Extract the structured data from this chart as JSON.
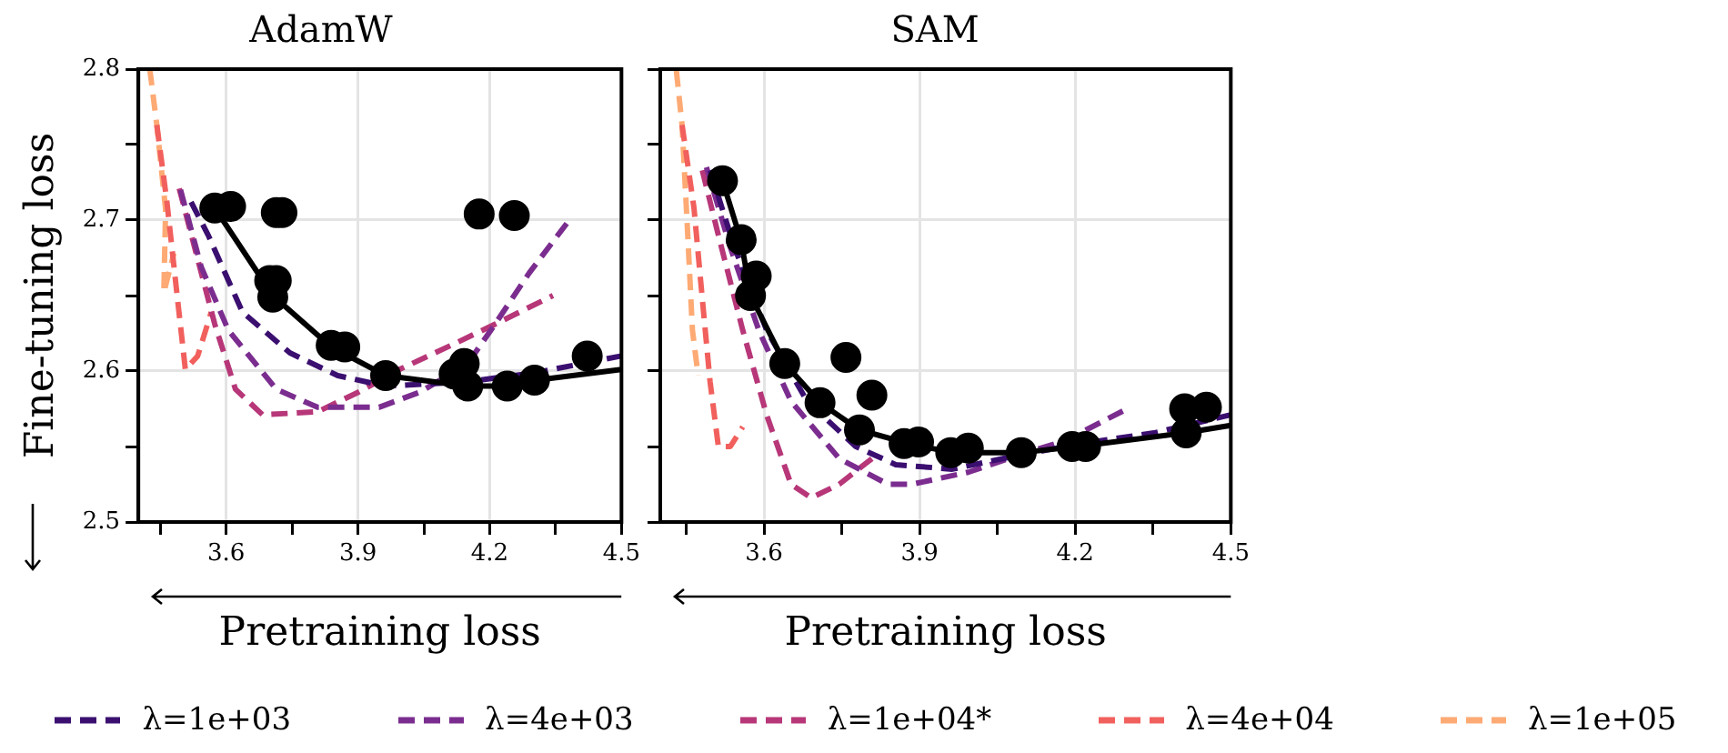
{
  "chart_data": [
    {
      "type": "line",
      "title": "AdamW",
      "xlabel": "Pretraining loss",
      "ylabel": "Fine-tuning loss",
      "xlim": [
        3.4,
        4.5
      ],
      "ylim": [
        2.5,
        2.8
      ],
      "xticks": [
        {
          "value": 3.45,
          "label": null
        },
        3.6,
        {
          "value": 3.75,
          "label": null
        },
        3.9,
        {
          "value": 4.05,
          "label": null
        },
        4.2,
        {
          "value": 4.35,
          "label": null
        },
        4.5
      ],
      "yticks": [
        2.5,
        {
          "value": 2.55,
          "label": null
        },
        2.6,
        {
          "value": 2.65,
          "label": null
        },
        2.7,
        {
          "value": 2.75,
          "label": null
        },
        2.8
      ],
      "grid": true,
      "legend": "bottom",
      "series": [
        {
          "type": "scatter",
          "color": "#000000",
          "marker": "circle",
          "x": [
            3.574,
            3.61,
            3.714,
            3.727,
            3.699,
            3.714,
            3.706,
            3.839,
            3.87,
            3.963,
            4.142,
            4.119,
            4.15,
            4.24,
            4.302,
            4.422,
            4.176,
            4.256
          ],
          "values": [
            2.708,
            2.709,
            2.705,
            2.705,
            2.66,
            2.66,
            2.649,
            2.617,
            2.616,
            2.597,
            2.605,
            2.598,
            2.59,
            2.59,
            2.594,
            2.61,
            2.704,
            2.703
          ]
        },
        {
          "type": "line",
          "color": "#000000",
          "marker": "none",
          "x": [
            3.574,
            3.706,
            3.839,
            3.963,
            4.15,
            4.243,
            4.306,
            4.5
          ],
          "values": [
            2.708,
            2.65,
            2.616,
            2.597,
            2.59,
            2.59,
            2.594,
            2.601
          ]
        },
        {
          "type": "line",
          "name": "λ=1e+03",
          "color": "#3b0f70",
          "marker": "none",
          "line_style": "dashed",
          "x": [
            3.52,
            3.559,
            3.637,
            3.745,
            3.854,
            3.963,
            4.15,
            4.306,
            4.5
          ],
          "values": [
            2.712,
            2.69,
            2.639,
            2.612,
            2.597,
            2.59,
            2.593,
            2.599,
            2.61
          ]
        },
        {
          "type": "line",
          "name": "λ=4e+03",
          "color": "#7b2d8f",
          "marker": "none",
          "line_style": "dashed",
          "x": [
            3.496,
            3.543,
            3.605,
            3.714,
            3.808,
            3.948,
            4.041,
            4.15,
            4.212,
            4.29,
            4.376
          ],
          "values": [
            2.72,
            2.669,
            2.627,
            2.588,
            2.576,
            2.576,
            2.586,
            2.605,
            2.631,
            2.665,
            2.698
          ]
        },
        {
          "type": "line",
          "name": "λ=1e+04*",
          "color": "#b73779",
          "marker": "none",
          "line_style": "dashed",
          "x": [
            3.493,
            3.528,
            3.574,
            3.621,
            3.683,
            3.808,
            3.901,
            3.994,
            4.119,
            4.212,
            4.344
          ],
          "values": [
            2.721,
            2.682,
            2.631,
            2.588,
            2.571,
            2.573,
            2.586,
            2.601,
            2.618,
            2.631,
            2.65
          ]
        },
        {
          "type": "line",
          "name": "λ=4e+04",
          "color": "#f1605d",
          "marker": "none",
          "line_style": "dashed",
          "x": [
            3.442,
            3.465,
            3.489,
            3.507,
            3.535,
            3.566
          ],
          "values": [
            2.763,
            2.712,
            2.648,
            2.601,
            2.61,
            2.639
          ]
        },
        {
          "type": "line",
          "name": "λ=1e+05",
          "color": "#feaa74",
          "marker": "none",
          "line_style": "dashed",
          "x": [
            3.426,
            3.442,
            3.462,
            3.458,
            3.481
          ],
          "values": [
            2.8,
            2.763,
            2.707,
            2.652,
            2.678
          ]
        }
      ]
    },
    {
      "type": "line",
      "title": "SAM",
      "xlabel": "Pretraining loss",
      "xlim": [
        3.4,
        4.5
      ],
      "ylim": [
        2.5,
        2.8
      ],
      "xticks": [
        {
          "value": 3.45,
          "label": null
        },
        3.6,
        {
          "value": 3.75,
          "label": null
        },
        3.9,
        {
          "value": 4.05,
          "label": null
        },
        4.2,
        {
          "value": 4.35,
          "label": null
        },
        4.5
      ],
      "yticks": [
        2.5,
        {
          "value": 2.55,
          "label": null
        },
        2.6,
        {
          "value": 2.65,
          "label": null
        },
        2.7,
        {
          "value": 2.75,
          "label": null
        },
        2.8
      ],
      "grid": true,
      "tick_labels": "x",
      "series": [
        {
          "type": "scatter",
          "color": "#000000",
          "marker": "circle",
          "x": [
            3.52,
            3.556,
            3.585,
            3.574,
            3.64,
            3.758,
            3.708,
            3.808,
            3.784,
            3.87,
            3.898,
            3.96,
            3.994,
            4.096,
            4.194,
            4.22,
            4.411,
            4.453,
            4.414
          ],
          "values": [
            2.726,
            2.687,
            2.663,
            2.65,
            2.605,
            2.609,
            2.579,
            2.584,
            2.561,
            2.552,
            2.553,
            2.546,
            2.549,
            2.546,
            2.55,
            2.55,
            2.575,
            2.576,
            2.559
          ]
        },
        {
          "type": "line",
          "color": "#000000",
          "marker": "none",
          "x": [
            3.52,
            3.556,
            3.574,
            3.64,
            3.708,
            3.784,
            3.878,
            3.963,
            4.096,
            4.204,
            4.411,
            4.5
          ],
          "values": [
            2.726,
            2.686,
            2.65,
            2.605,
            2.579,
            2.561,
            2.552,
            2.546,
            2.546,
            2.55,
            2.559,
            2.564
          ]
        },
        {
          "type": "line",
          "name": "λ=1e+03",
          "color": "#3b0f70",
          "marker": "none",
          "line_style": "dashed",
          "x": [
            3.496,
            3.543,
            3.605,
            3.683,
            3.777,
            3.854,
            3.963,
            4.088,
            4.212,
            4.352,
            4.5
          ],
          "values": [
            2.733,
            2.682,
            2.627,
            2.58,
            2.55,
            2.538,
            2.535,
            2.544,
            2.552,
            2.559,
            2.571
          ]
        },
        {
          "type": "line",
          "name": "λ=4e+03",
          "color": "#7b2d8f",
          "marker": "none",
          "line_style": "dashed",
          "x": [
            3.489,
            3.535,
            3.59,
            3.652,
            3.745,
            3.839,
            3.885,
            3.994,
            4.088,
            4.181,
            4.306
          ],
          "values": [
            2.735,
            2.682,
            2.627,
            2.58,
            2.542,
            2.525,
            2.525,
            2.533,
            2.544,
            2.554,
            2.576
          ]
        },
        {
          "type": "line",
          "name": "λ=1e+04*",
          "color": "#b73779",
          "marker": "none",
          "line_style": "dashed",
          "x": [
            3.481,
            3.512,
            3.559,
            3.605,
            3.652,
            3.691,
            3.745,
            3.808
          ],
          "values": [
            2.733,
            2.69,
            2.627,
            2.571,
            2.525,
            2.516,
            2.525,
            2.542
          ]
        },
        {
          "type": "line",
          "name": "λ=4e+04",
          "color": "#f1605d",
          "marker": "none",
          "line_style": "dashed",
          "x": [
            3.442,
            3.465,
            3.481,
            3.496,
            3.512,
            3.535,
            3.559
          ],
          "values": [
            2.763,
            2.708,
            2.648,
            2.593,
            2.55,
            2.55,
            2.563
          ]
        },
        {
          "type": "line",
          "name": "λ=1e+05",
          "color": "#feaa74",
          "marker": "none",
          "line_style": "dashed",
          "x": [
            3.431,
            3.442,
            3.453,
            3.462,
            3.473
          ],
          "values": [
            2.799,
            2.763,
            2.69,
            2.627,
            2.597
          ]
        }
      ]
    }
  ]
}
